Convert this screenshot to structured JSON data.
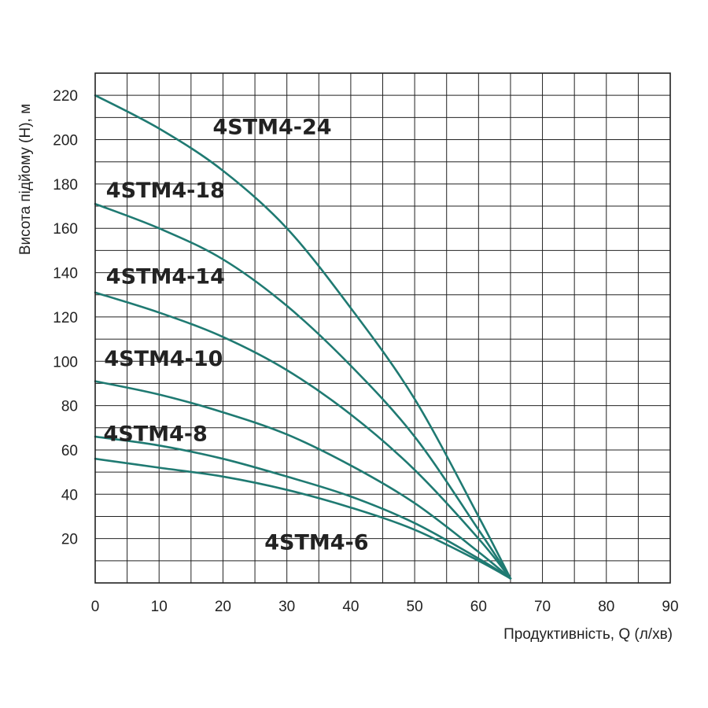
{
  "chart_data": {
    "type": "line",
    "title": "",
    "xlabel": "Продуктивність, Q (л/хв)",
    "ylabel": "Висота підйому (H), м",
    "xlim": [
      0,
      90
    ],
    "ylim": [
      0,
      230
    ],
    "x_ticks": [
      "0",
      "10",
      "20",
      "30",
      "40",
      "50",
      "60",
      "70",
      "80",
      "90"
    ],
    "y_ticks": [
      "20",
      "40",
      "60",
      "80",
      "100",
      "120",
      "140",
      "160",
      "180",
      "200",
      "220"
    ],
    "grid": true,
    "line_color": "#1f7a72",
    "series": [
      {
        "name": "4STM4-24",
        "x": [
          0,
          10,
          20,
          30,
          40,
          50,
          60,
          65
        ],
        "y": [
          220,
          205,
          186,
          160,
          124,
          83,
          30,
          2
        ]
      },
      {
        "name": "4STM4-18",
        "x": [
          0,
          10,
          20,
          30,
          40,
          50,
          60,
          65
        ],
        "y": [
          171,
          160,
          146,
          125,
          98,
          66,
          24,
          2
        ]
      },
      {
        "name": "4STM4-14",
        "x": [
          0,
          10,
          20,
          30,
          40,
          50,
          60,
          65
        ],
        "y": [
          131,
          122,
          111,
          96,
          76,
          51,
          20,
          2
        ]
      },
      {
        "name": "4STM4-10",
        "x": [
          0,
          10,
          20,
          30,
          40,
          50,
          60,
          65
        ],
        "y": [
          91,
          85,
          77,
          67,
          53,
          36,
          14,
          2
        ]
      },
      {
        "name": "4STM4-8",
        "x": [
          0,
          10,
          20,
          30,
          40,
          50,
          60,
          65
        ],
        "y": [
          66,
          62,
          56,
          48,
          39,
          27,
          11,
          2
        ]
      },
      {
        "name": "4STM4-6",
        "x": [
          0,
          10,
          20,
          30,
          40,
          50,
          60,
          65
        ],
        "y": [
          56,
          52,
          48,
          42,
          34,
          24,
          10,
          2
        ]
      }
    ],
    "series_labels": [
      {
        "text": "4STM4-24",
        "x": 18.4,
        "y": 202.5
      },
      {
        "text": "4STM4-18",
        "x": 1.7,
        "y": 174
      },
      {
        "text": "4STM4-14",
        "x": 1.7,
        "y": 135
      },
      {
        "text": "4STM4-10",
        "x": 1.4,
        "y": 98
      },
      {
        "text": "4STM4-8",
        "x": 1.3,
        "y": 64
      },
      {
        "text": "4STM4-6",
        "x": 26.5,
        "y": 15
      }
    ]
  }
}
